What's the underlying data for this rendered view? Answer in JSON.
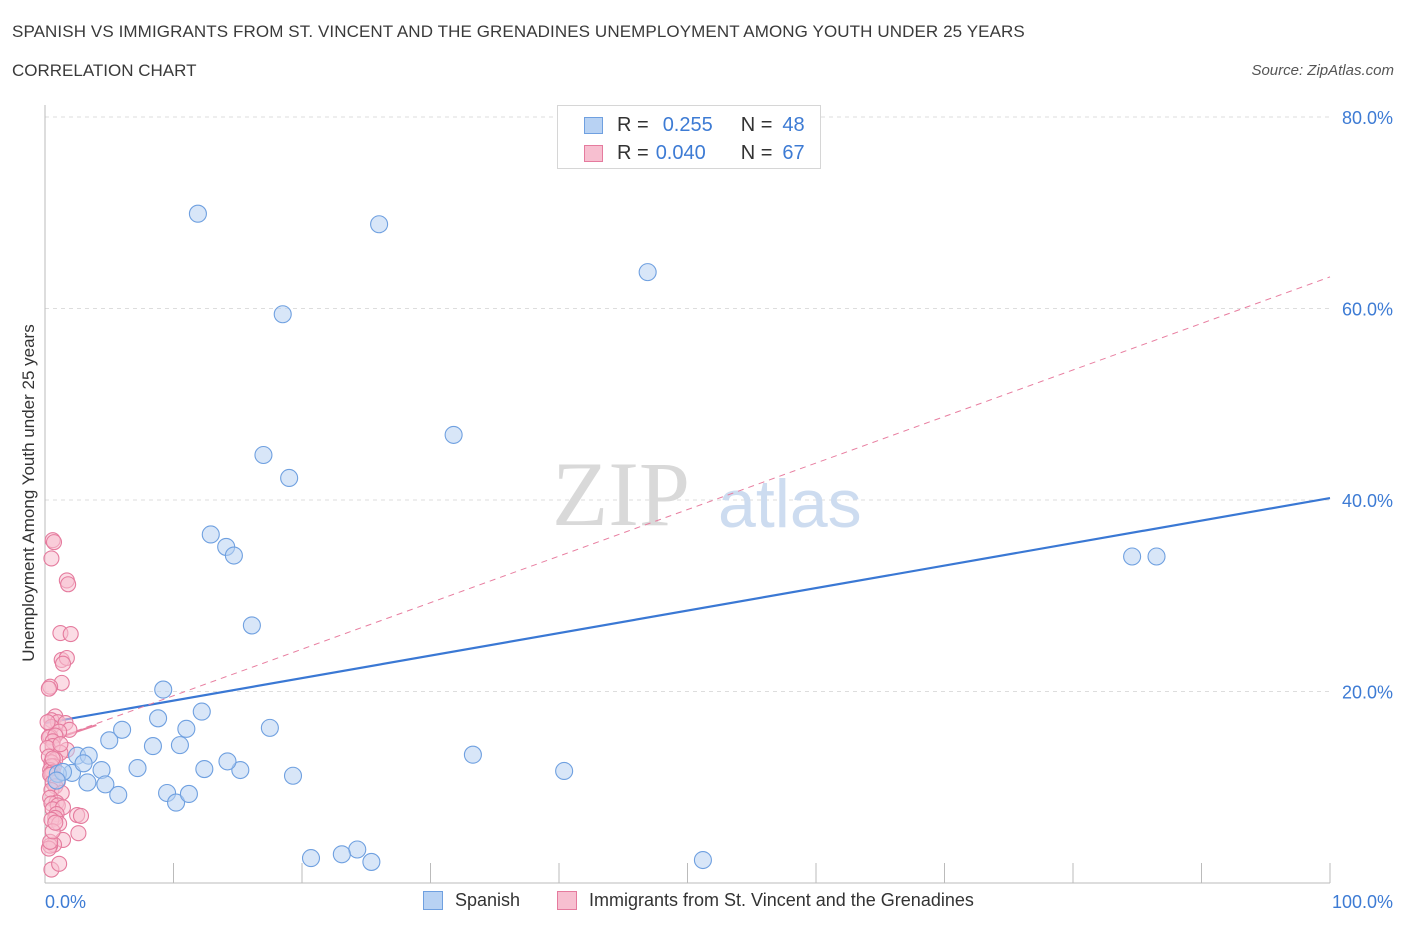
{
  "header": {
    "title": "SPANISH VS IMMIGRANTS FROM ST. VINCENT AND THE GRENADINES UNEMPLOYMENT AMONG YOUTH UNDER 25 YEARS",
    "subtitle": "CORRELATION CHART",
    "source": "Source: ZipAtlas.com"
  },
  "legend_top": {
    "rows": [
      {
        "r_label": "R =",
        "r_value": "0.255",
        "n_label": "N =",
        "n_value": "48"
      },
      {
        "r_label": "R =",
        "r_value": "0.040",
        "n_label": "N =",
        "n_value": "67"
      }
    ]
  },
  "legend_bottom": {
    "items": [
      {
        "label": "Spanish"
      },
      {
        "label": "Immigrants from St. Vincent and the Grenadines"
      }
    ]
  },
  "watermark": {
    "zip": "ZIP",
    "atlas": "atlas"
  },
  "colors": {
    "spanish_fill": "#b8d2f3",
    "spanish_stroke": "#6fa0e0",
    "spanish_line": "#3a78d4",
    "svg_fill": "#f7bfd0",
    "svg_stroke": "#e57b9e",
    "svg_line": "#e87ea0",
    "axis_text": "#3d7bd4",
    "grid": "#dddddd"
  },
  "chart_data": {
    "type": "scatter",
    "title": "SPANISH VS IMMIGRANTS FROM ST. VINCENT AND THE GRENADINES UNEMPLOYMENT AMONG YOUTH UNDER 25 YEARS",
    "xlabel": "",
    "ylabel": "Unemployment Among Youth under 25 years",
    "xlim": [
      0,
      100
    ],
    "ylim": [
      0,
      80
    ],
    "x_tick_labels": [
      "0.0%",
      "100.0%"
    ],
    "y_ticks": [
      20,
      40,
      60,
      80
    ],
    "y_tick_labels": [
      "20.0%",
      "40.0%",
      "60.0%",
      "80.0%"
    ],
    "grid": true,
    "series": [
      {
        "name": "Spanish",
        "x": [
          11.9,
          26.0,
          46.9,
          18.5,
          17.0,
          19.0,
          31.8,
          12.9,
          14.1,
          14.7,
          16.1,
          9.2,
          11.0,
          8.8,
          10.5,
          12.2,
          17.5,
          15.2,
          33.3,
          24.3,
          2.1,
          2.5,
          3.4,
          3.0,
          4.4,
          3.3,
          4.7,
          5.0,
          6.0,
          7.2,
          5.7,
          8.4,
          9.5,
          10.2,
          11.2,
          12.4,
          14.2,
          19.3,
          20.7,
          23.1,
          25.4,
          40.4,
          51.2,
          84.6,
          86.5,
          1.0,
          1.4,
          0.9
        ],
        "y": [
          69.9,
          68.8,
          63.8,
          59.4,
          44.7,
          42.3,
          46.8,
          36.4,
          35.1,
          34.2,
          26.9,
          20.2,
          16.1,
          17.2,
          14.4,
          17.9,
          16.2,
          11.8,
          13.4,
          3.5,
          11.5,
          13.3,
          13.3,
          12.5,
          11.8,
          10.5,
          10.3,
          14.9,
          16.0,
          12.0,
          9.2,
          14.3,
          9.4,
          8.4,
          9.3,
          11.9,
          12.7,
          11.2,
          2.6,
          3.0,
          2.2,
          11.7,
          2.4,
          34.1,
          34.1,
          11.4,
          11.6,
          10.7
        ]
      },
      {
        "name": "Immigrants from St. Vincent and the Grenadines",
        "x": [
          0.6,
          0.7,
          0.5,
          1.7,
          1.8,
          1.2,
          1.3,
          1.7,
          2.0,
          1.4,
          1.3,
          0.4,
          0.3,
          0.8,
          0.5,
          1.0,
          1.6,
          1.9,
          0.5,
          1.1,
          0.4,
          0.3,
          0.8,
          0.6,
          0.6,
          0.2,
          1.7,
          1.2,
          0.3,
          0.8,
          0.5,
          0.7,
          0.5,
          0.4,
          0.6,
          0.5,
          0.4,
          1.0,
          0.6,
          0.8,
          0.5,
          1.3,
          0.4,
          0.9,
          0.5,
          1.0,
          0.6,
          1.4,
          0.9,
          2.5,
          2.8,
          0.8,
          0.5,
          1.1,
          2.6,
          1.4,
          0.7,
          0.4,
          0.3,
          0.4,
          0.6,
          0.8,
          0.5,
          1.1,
          0.6,
          1.2,
          0.2
        ],
        "y": [
          35.8,
          35.6,
          33.9,
          31.6,
          31.2,
          26.1,
          23.3,
          23.5,
          26.0,
          22.9,
          20.9,
          20.5,
          20.3,
          17.4,
          17.0,
          16.8,
          16.7,
          16.0,
          16.3,
          15.8,
          15.3,
          15.2,
          15.4,
          14.8,
          14.3,
          14.1,
          13.9,
          13.6,
          13.2,
          12.9,
          12.6,
          12.2,
          12.2,
          11.8,
          11.6,
          11.3,
          11.3,
          10.6,
          10.5,
          10.1,
          9.7,
          9.4,
          8.9,
          8.4,
          8.3,
          8.1,
          7.7,
          7.9,
          7.2,
          7.1,
          7.0,
          6.8,
          6.6,
          6.2,
          5.2,
          4.5,
          4.0,
          3.9,
          3.6,
          4.3,
          5.4,
          6.3,
          1.4,
          2.0,
          13.0,
          14.5,
          16.8
        ]
      }
    ],
    "trendlines": [
      {
        "series": "Spanish",
        "style": "solid",
        "x": [
          0,
          100
        ],
        "y": [
          16.7,
          40.2
        ]
      },
      {
        "series": "Immigrants from St. Vincent and the Grenadines",
        "style": "dashed",
        "x": [
          0,
          100
        ],
        "y": [
          14.7,
          63.3
        ]
      }
    ]
  }
}
